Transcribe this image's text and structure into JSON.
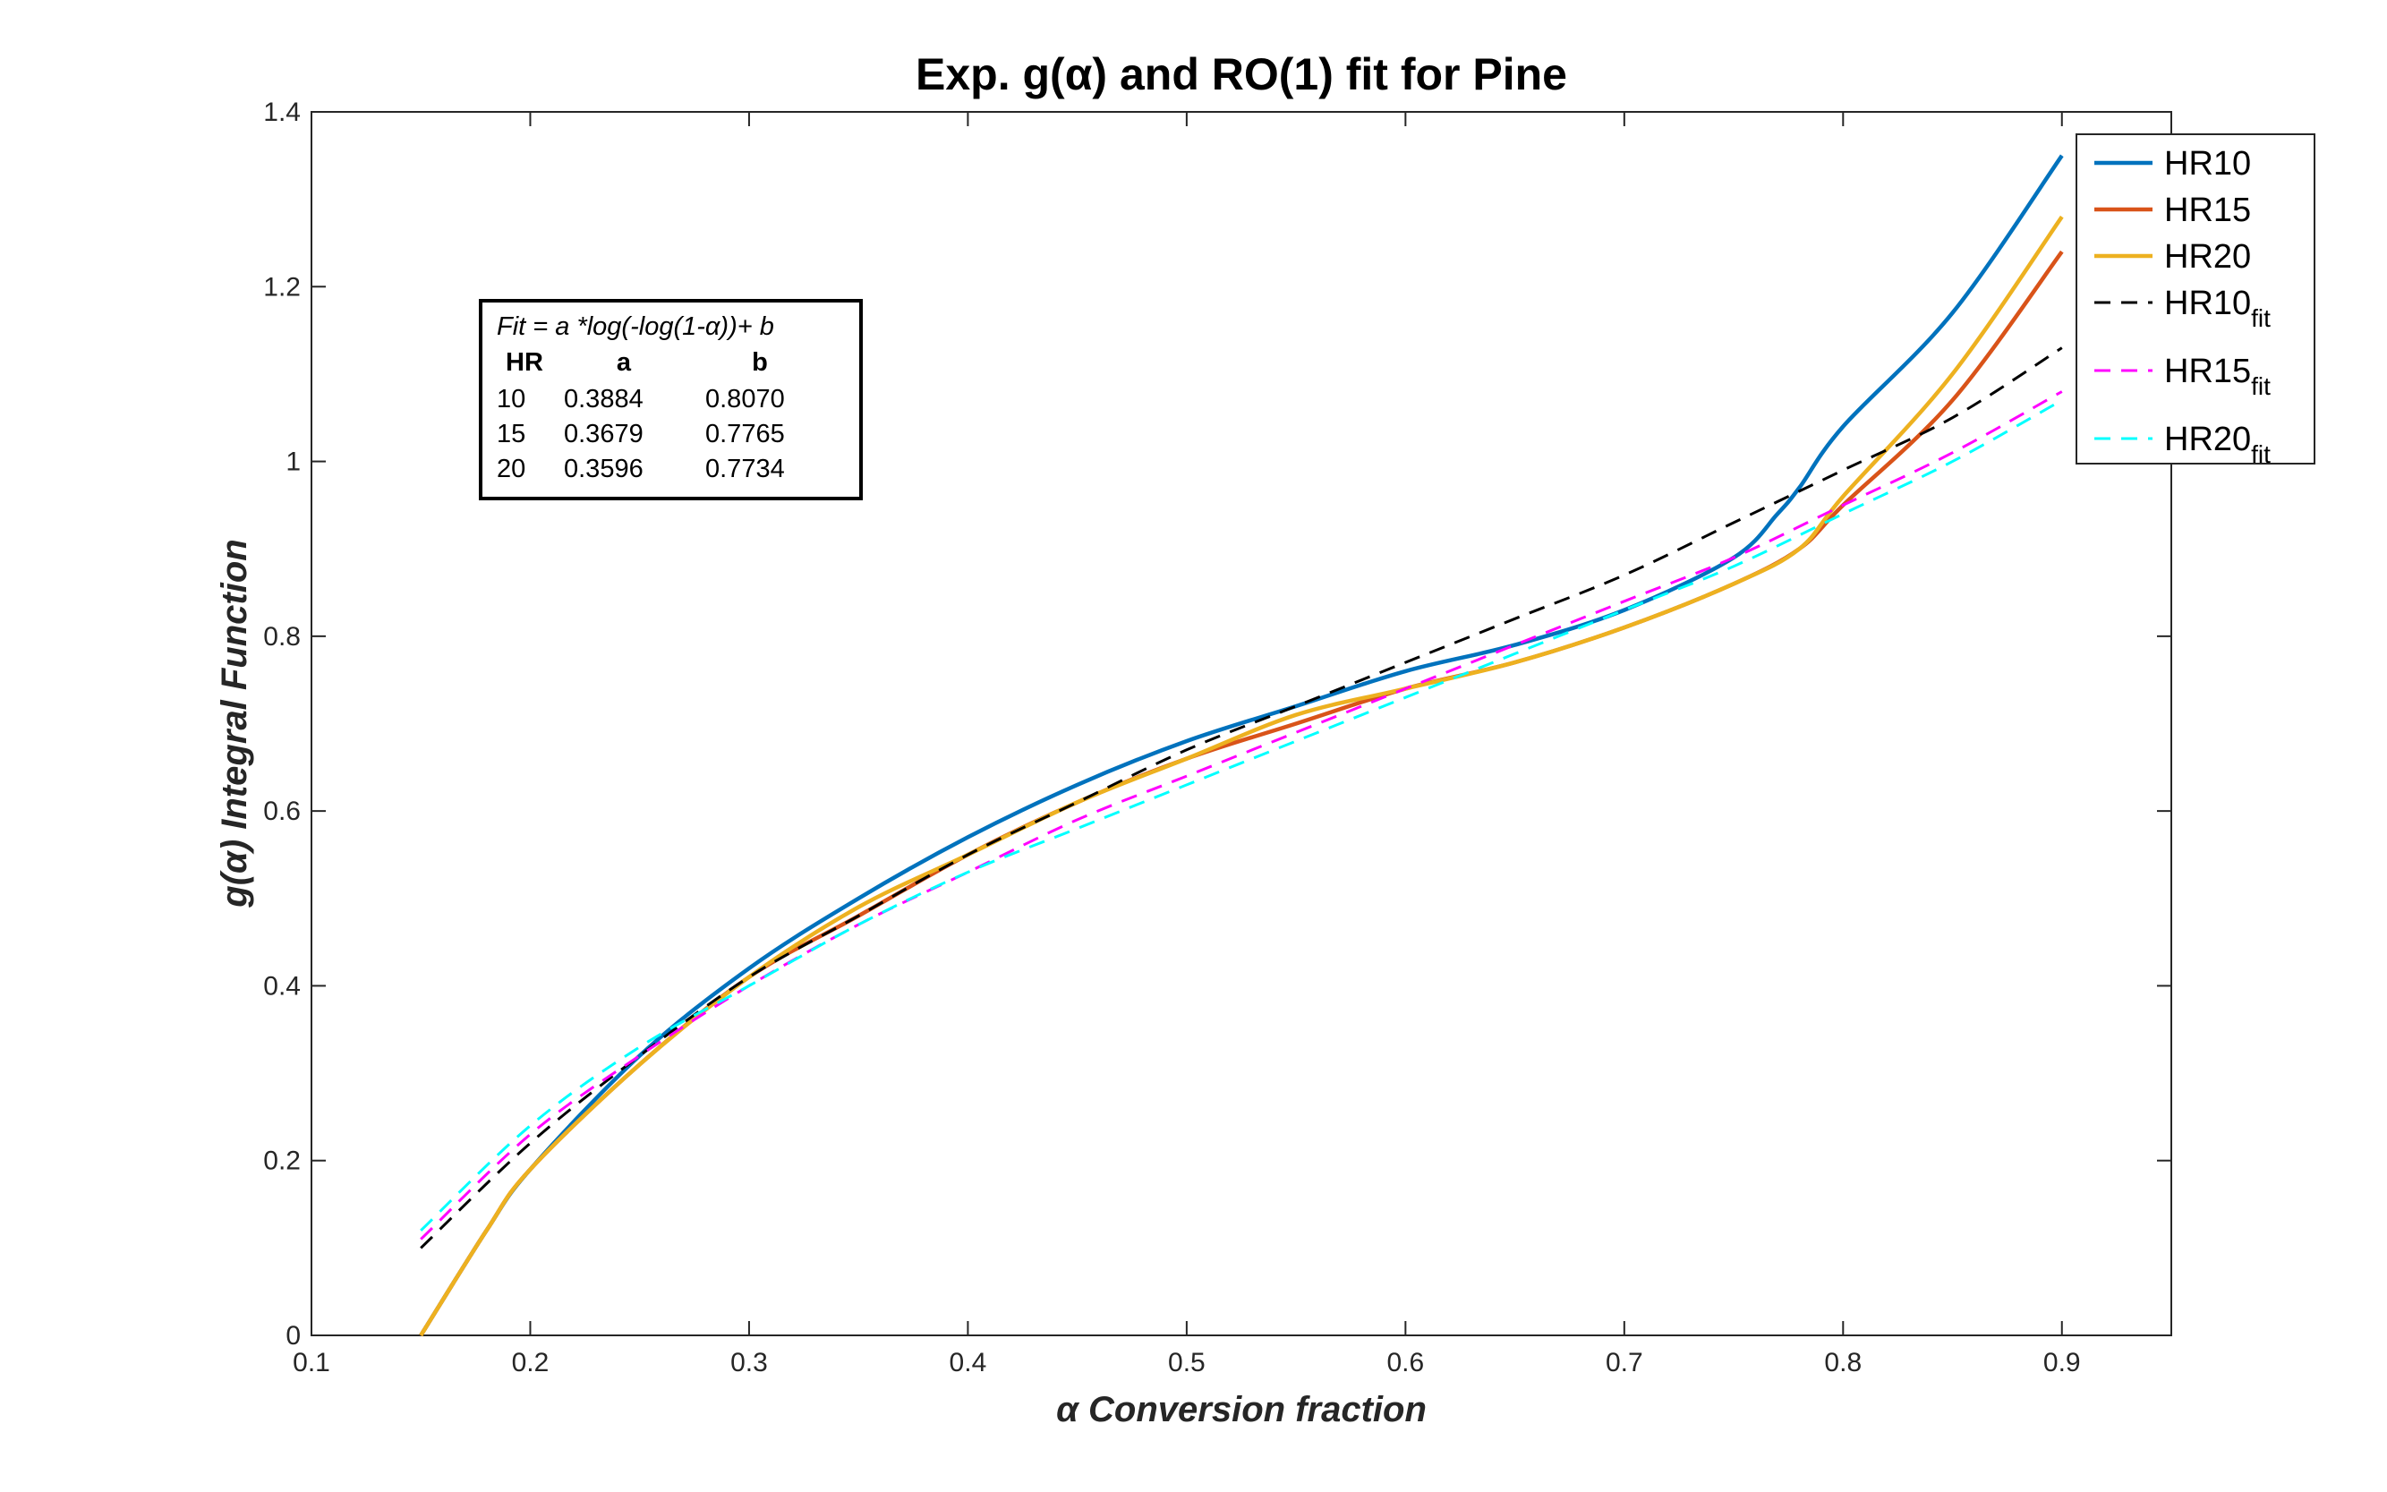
{
  "chart_data": {
    "type": "line",
    "title": "Exp. g(α) and RO(1) fit for Pine",
    "xlabel": "α  Conversion fraction",
    "ylabel": "g(α)  Integral Function",
    "xlim": [
      0.1,
      0.95
    ],
    "ylim": [
      0,
      1.4
    ],
    "xticks": [
      "0.1",
      "0.2",
      "0.3",
      "0.4",
      "0.5",
      "0.6",
      "0.7",
      "0.8",
      "0.9"
    ],
    "yticks": [
      "0",
      "0.2",
      "0.4",
      "0.6",
      "0.8",
      "1",
      "1.2",
      "1.4"
    ],
    "grid": false,
    "legend_position": "outside-top-right",
    "series": [
      {
        "name": "HR10",
        "style": "solid",
        "color": "#0072BD",
        "x": [
          0.15,
          0.18,
          0.2,
          0.25,
          0.3,
          0.35,
          0.4,
          0.45,
          0.5,
          0.55,
          0.6,
          0.65,
          0.7,
          0.75,
          0.77,
          0.78,
          0.8,
          0.85,
          0.9
        ],
        "y": [
          0.0,
          0.12,
          0.19,
          0.32,
          0.42,
          0.5,
          0.57,
          0.63,
          0.68,
          0.72,
          0.76,
          0.79,
          0.83,
          0.89,
          0.94,
          0.97,
          1.04,
          1.17,
          1.35
        ]
      },
      {
        "name": "HR15",
        "style": "solid",
        "color": "#D95319",
        "x": [
          0.15,
          0.18,
          0.2,
          0.25,
          0.3,
          0.35,
          0.4,
          0.45,
          0.5,
          0.55,
          0.6,
          0.65,
          0.7,
          0.75,
          0.78,
          0.8,
          0.85,
          0.9
        ],
        "y": [
          0.0,
          0.12,
          0.19,
          0.31,
          0.41,
          0.48,
          0.55,
          0.61,
          0.66,
          0.7,
          0.74,
          0.77,
          0.81,
          0.86,
          0.9,
          0.95,
          1.07,
          1.24
        ]
      },
      {
        "name": "HR20",
        "style": "solid",
        "color": "#EDB120",
        "x": [
          0.15,
          0.18,
          0.2,
          0.25,
          0.3,
          0.35,
          0.4,
          0.45,
          0.5,
          0.55,
          0.6,
          0.65,
          0.7,
          0.75,
          0.78,
          0.8,
          0.85,
          0.9
        ],
        "y": [
          0.0,
          0.12,
          0.19,
          0.31,
          0.41,
          0.49,
          0.55,
          0.61,
          0.66,
          0.71,
          0.74,
          0.77,
          0.81,
          0.86,
          0.9,
          0.96,
          1.1,
          1.28
        ]
      },
      {
        "name": "HR10",
        "name_sub": "fit",
        "style": "dashed",
        "color": "#000000",
        "x": [
          0.15,
          0.2,
          0.25,
          0.3,
          0.35,
          0.4,
          0.45,
          0.5,
          0.55,
          0.6,
          0.65,
          0.7,
          0.75,
          0.8,
          0.85,
          0.9
        ],
        "y": [
          0.1,
          0.22,
          0.32,
          0.41,
          0.48,
          0.55,
          0.61,
          0.67,
          0.72,
          0.77,
          0.82,
          0.87,
          0.93,
          0.99,
          1.05,
          1.13
        ]
      },
      {
        "name": "HR15",
        "name_sub": "fit",
        "style": "dashed",
        "color": "#FF00FF",
        "x": [
          0.15,
          0.2,
          0.25,
          0.3,
          0.35,
          0.4,
          0.45,
          0.5,
          0.55,
          0.6,
          0.65,
          0.7,
          0.75,
          0.8,
          0.85,
          0.9
        ],
        "y": [
          0.11,
          0.23,
          0.32,
          0.4,
          0.47,
          0.53,
          0.59,
          0.64,
          0.69,
          0.74,
          0.79,
          0.84,
          0.89,
          0.95,
          1.01,
          1.08
        ]
      },
      {
        "name": "HR20",
        "name_sub": "fit",
        "style": "dashed",
        "color": "#00FFFF",
        "x": [
          0.15,
          0.2,
          0.25,
          0.3,
          0.35,
          0.4,
          0.45,
          0.5,
          0.55,
          0.6,
          0.65,
          0.7,
          0.75,
          0.8,
          0.85,
          0.9
        ],
        "y": [
          0.12,
          0.24,
          0.33,
          0.4,
          0.47,
          0.53,
          0.58,
          0.63,
          0.68,
          0.73,
          0.78,
          0.83,
          0.88,
          0.94,
          1.0,
          1.07
        ]
      }
    ],
    "annotation": {
      "formula": "Fit = a *log(-log(1-α))+ b",
      "headers": [
        "HR",
        "a",
        "b"
      ],
      "rows": [
        [
          "10",
          "0.3884",
          "0.8070"
        ],
        [
          "15",
          "0.3679",
          "0.7765"
        ],
        [
          "20",
          "0.3596",
          "0.7734"
        ]
      ]
    }
  }
}
